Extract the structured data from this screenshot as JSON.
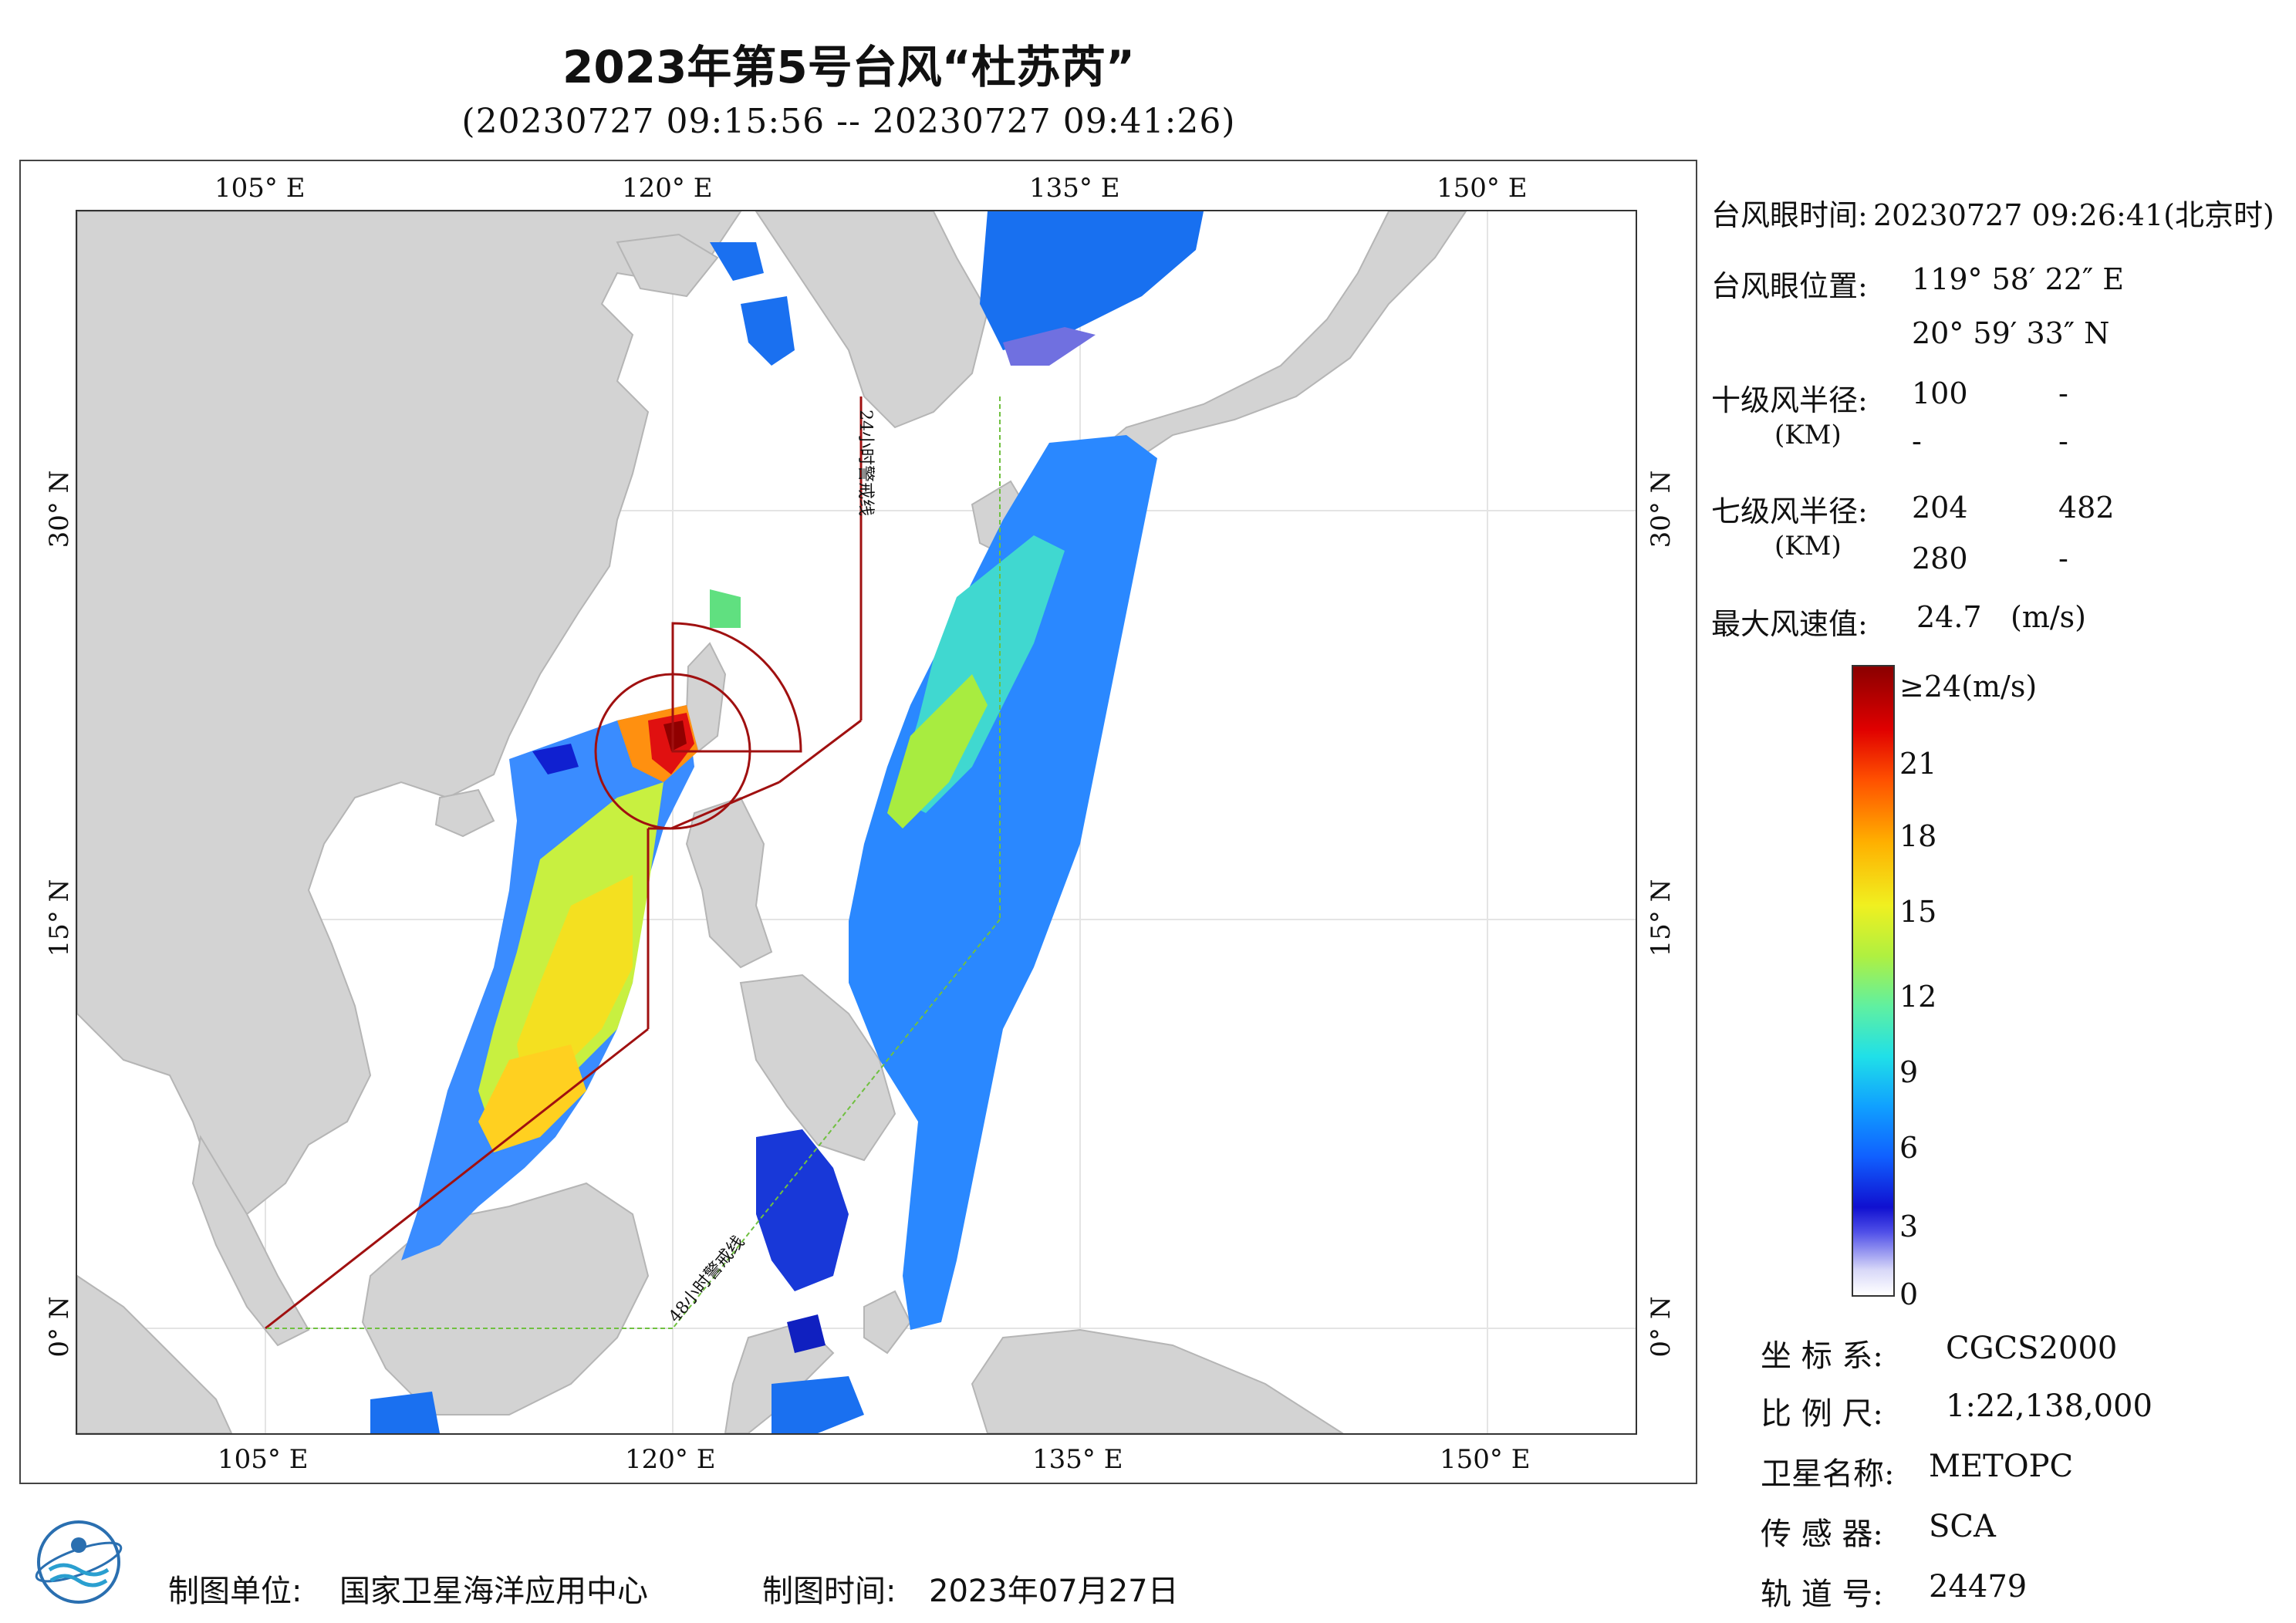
{
  "title": "2023年第5号台风“杜苏芮”",
  "subtitle": "(20230727 09:15:56 -- 20230727 09:41:26)",
  "map": {
    "lon_labels_top": [
      "105° E",
      "120° E",
      "135° E",
      "150° E"
    ],
    "lon_labels_bottom": [
      "105° E",
      "120° E",
      "135° E",
      "150° E"
    ],
    "lat_labels_left": [
      "30° N",
      "15° N",
      "0° N"
    ],
    "lat_labels_right": [
      "30° N",
      "15° N",
      "0° N"
    ],
    "warning_24h": "24小时警戒线",
    "warning_48h": "48小时警戒线",
    "colors": {
      "land": "#d3d3d3",
      "sea": "#ffffff",
      "warning_line": "#a01010",
      "warning_48_line": "#70c040"
    }
  },
  "info": {
    "eye_time_label": "台风眼时间:",
    "eye_time_value": "20230727 09:26:41(北京时)",
    "eye_pos_label": "台风眼位置:",
    "eye_lon": "119° 58′ 22″ E",
    "eye_lat": "20° 59′ 33″ N",
    "r10_label": "十级风半径:",
    "r10_unit": "(KM)",
    "r10_values": [
      "100",
      "-",
      "-",
      "-"
    ],
    "r7_label": "七级风半径:",
    "r7_unit": "(KM)",
    "r7_values": [
      "204",
      "482",
      "280",
      "-"
    ],
    "max_wind_label": "最大风速值:",
    "max_wind_value": "24.7",
    "max_wind_unit": "(m/s)"
  },
  "colorbar": {
    "ticks": [
      "≥24(m/s)",
      "21",
      "18",
      "15",
      "12",
      "9",
      "6",
      "3",
      "0"
    ]
  },
  "meta": {
    "crs_label": "坐 标 系:",
    "crs_value": "CGCS2000",
    "scale_label": "比 例 尺:",
    "scale_value": "1:22,138,000",
    "sat_label": "卫星名称:",
    "sat_value": "METOPC",
    "sensor_label": "传 感 器:",
    "sensor_value": "SCA",
    "orbit_label": "轨 道 号:",
    "orbit_value": "24479"
  },
  "footer": {
    "org_label": "制图单位:",
    "org_value": "国家卫星海洋应用中心",
    "date_label": "制图时间:",
    "date_value": "2023年07月27日"
  }
}
